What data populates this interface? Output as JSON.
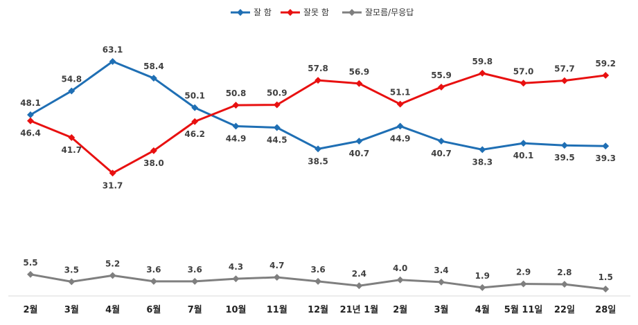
{
  "chart_data": {
    "type": "line",
    "categories": [
      "2월",
      "3월",
      "4월",
      "6월",
      "7월",
      "10월",
      "11월",
      "12월",
      "21년 1월",
      "2월",
      "3월",
      "4월",
      "5월 11일",
      "22일",
      "28일"
    ],
    "series": [
      {
        "name": "잘 함",
        "color": "#1F6FB4",
        "values": [
          48.1,
          54.8,
          63.1,
          58.4,
          50.1,
          44.9,
          44.5,
          38.5,
          40.7,
          44.9,
          40.7,
          38.3,
          40.1,
          39.5,
          39.3
        ]
      },
      {
        "name": "잘못 함",
        "color": "#E81010",
        "values": [
          46.4,
          41.7,
          31.7,
          38.0,
          46.2,
          50.8,
          50.9,
          57.8,
          56.9,
          51.1,
          55.9,
          59.8,
          57.0,
          57.7,
          59.2
        ]
      },
      {
        "name": "잘모름/무응답",
        "color": "#7F7F7F",
        "values": [
          5.5,
          3.5,
          5.2,
          3.6,
          3.6,
          4.3,
          4.7,
          3.6,
          2.4,
          4.0,
          3.4,
          1.9,
          2.9,
          2.8,
          1.5
        ]
      }
    ],
    "legend_position": "top-center",
    "grid": false
  }
}
